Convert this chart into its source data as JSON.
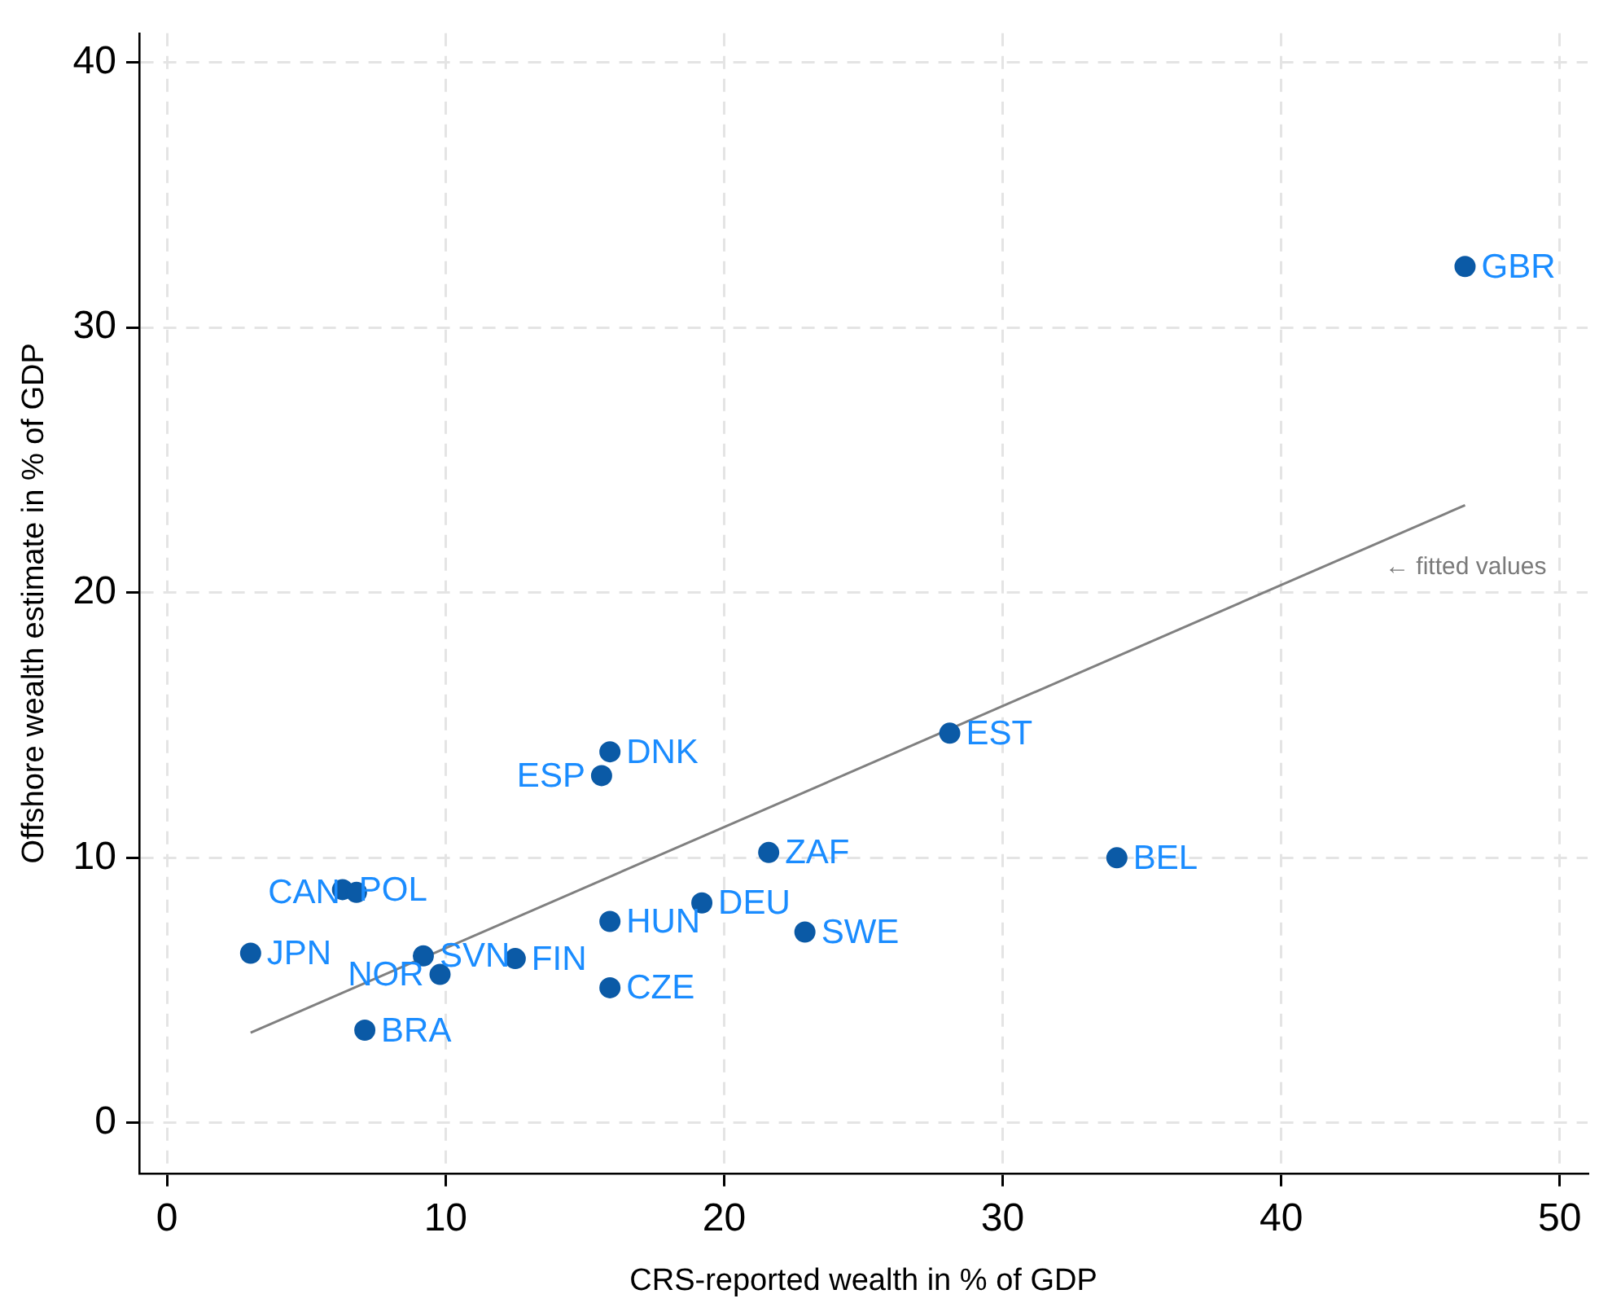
{
  "chart_data": {
    "type": "scatter",
    "xlabel": "CRS-reported wealth in % of GDP",
    "ylabel": "Offshore wealth estimate in % of GDP",
    "xlim": [
      -1,
      51
    ],
    "xticks": [
      0,
      10,
      20,
      30,
      40,
      50
    ],
    "ylim": [
      -1.9,
      41.1
    ],
    "yticks": [
      0,
      10,
      20,
      30,
      40
    ],
    "grid": true,
    "marker": "circle",
    "series": [
      {
        "color": "#0b5aa6",
        "x": [
          46.6,
          28.1,
          34.1,
          15.9,
          15.6,
          21.6,
          19.2,
          15.9,
          22.9,
          15.9,
          12.5,
          9.2,
          9.8,
          6.3,
          6.8,
          3.0,
          7.1
        ],
        "values": [
          32.3,
          14.7,
          10.0,
          14.0,
          13.1,
          10.2,
          8.3,
          7.6,
          7.2,
          5.1,
          6.2,
          6.3,
          5.6,
          8.8,
          8.7,
          6.4,
          3.5
        ]
      },
      {
        "type": "line",
        "marker": "none",
        "color": "#808080",
        "x": [
          3.0,
          46.6
        ],
        "values": [
          3.4,
          23.3
        ]
      }
    ],
    "annotations": [
      {
        "text": "GBR",
        "x": 46.6,
        "y": 32.3
      },
      {
        "text": "EST",
        "x": 28.1,
        "y": 14.7
      },
      {
        "text": "BEL",
        "x": 34.1,
        "y": 10.0
      },
      {
        "text": "DNK",
        "x": 15.9,
        "y": 14.0
      },
      {
        "text": "ESP",
        "x": 15.6,
        "y": 13.1
      },
      {
        "text": "ZAF",
        "x": 21.6,
        "y": 10.2
      },
      {
        "text": "DEU",
        "x": 19.2,
        "y": 8.3
      },
      {
        "text": "HUN",
        "x": 15.9,
        "y": 7.6
      },
      {
        "text": "SWE",
        "x": 22.9,
        "y": 7.2
      },
      {
        "text": "CZE",
        "x": 15.9,
        "y": 5.1
      },
      {
        "text": "FIN",
        "x": 12.5,
        "y": 6.2
      },
      {
        "text": "SVN",
        "x": 9.2,
        "y": 6.3
      },
      {
        "text": "NOR",
        "x": 9.8,
        "y": 5.6
      },
      {
        "text": "POL",
        "x": 6.3,
        "y": 8.8
      },
      {
        "text": "CAN",
        "x": 6.8,
        "y": 8.7
      },
      {
        "text": "JPN",
        "x": 3.0,
        "y": 6.4
      },
      {
        "text": "BRA",
        "x": 7.1,
        "y": 3.5
      },
      "← fitted values"
    ]
  }
}
